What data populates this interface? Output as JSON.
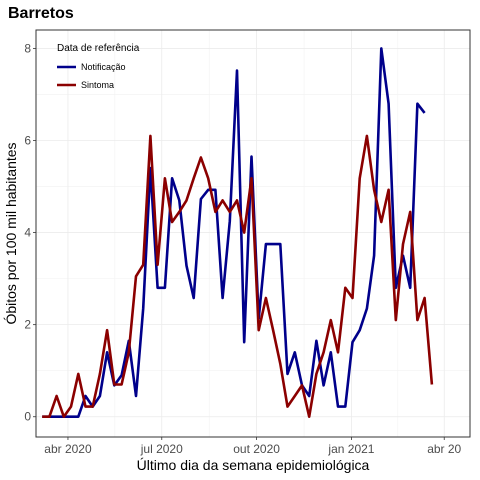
{
  "chart_data": {
    "type": "line",
    "title": "Barretos",
    "xlabel": "Último dia da semana epidemiológica",
    "ylabel": "Óbitos por 100 mil habitantes",
    "ylim": [
      -0.44,
      8.4
    ],
    "xlim": [
      "2020-03-01",
      "2021-04-26"
    ],
    "y_ticks": [
      0,
      2,
      4,
      6,
      8
    ],
    "x_ticks": [
      {
        "date": "2020-04-01",
        "label": "abr 2020"
      },
      {
        "date": "2020-07-01",
        "label": "jul 2020"
      },
      {
        "date": "2020-10-01",
        "label": "out 2020"
      },
      {
        "date": "2021-01-01",
        "label": "jan 2021"
      },
      {
        "date": "2021-04-01",
        "label": "abr 20"
      }
    ],
    "grid": true,
    "legend": {
      "title": "Data de referência",
      "position": "top-left"
    },
    "series": [
      {
        "name": "Notificação",
        "color": "#00008b",
        "points": [
          [
            "2020-03-07",
            0
          ],
          [
            "2020-03-14",
            0
          ],
          [
            "2020-03-21",
            0
          ],
          [
            "2020-03-28",
            0
          ],
          [
            "2020-04-04",
            0
          ],
          [
            "2020-04-11",
            0
          ],
          [
            "2020-04-18",
            0.45
          ],
          [
            "2020-04-25",
            0.22
          ],
          [
            "2020-05-02",
            0.45
          ],
          [
            "2020-05-09",
            1.4
          ],
          [
            "2020-05-16",
            0.68
          ],
          [
            "2020-05-23",
            0.9
          ],
          [
            "2020-05-30",
            1.65
          ],
          [
            "2020-06-06",
            0.45
          ],
          [
            "2020-06-13",
            2.35
          ],
          [
            "2020-06-20",
            5.4
          ],
          [
            "2020-06-27",
            2.8
          ],
          [
            "2020-07-04",
            2.8
          ],
          [
            "2020-07-11",
            5.18
          ],
          [
            "2020-07-18",
            4.7
          ],
          [
            "2020-07-25",
            3.28
          ],
          [
            "2020-08-01",
            2.58
          ],
          [
            "2020-08-08",
            4.73
          ],
          [
            "2020-08-15",
            4.93
          ],
          [
            "2020-08-22",
            4.93
          ],
          [
            "2020-08-29",
            2.58
          ],
          [
            "2020-09-05",
            4.25
          ],
          [
            "2020-09-12",
            7.52
          ],
          [
            "2020-09-19",
            1.62
          ],
          [
            "2020-09-26",
            5.65
          ],
          [
            "2020-10-03",
            2.13
          ],
          [
            "2020-10-10",
            3.75
          ],
          [
            "2020-10-17",
            3.75
          ],
          [
            "2020-10-24",
            3.75
          ],
          [
            "2020-10-31",
            0.93
          ],
          [
            "2020-11-07",
            1.4
          ],
          [
            "2020-11-14",
            0.68
          ],
          [
            "2020-11-21",
            0.45
          ],
          [
            "2020-11-28",
            1.65
          ],
          [
            "2020-12-05",
            0.68
          ],
          [
            "2020-12-12",
            1.4
          ],
          [
            "2020-12-19",
            0.22
          ],
          [
            "2020-12-26",
            0.22
          ],
          [
            "2021-01-02",
            1.62
          ],
          [
            "2021-01-09",
            1.88
          ],
          [
            "2021-01-16",
            2.35
          ],
          [
            "2021-01-23",
            3.5
          ],
          [
            "2021-01-30",
            8.0
          ],
          [
            "2021-02-06",
            6.8
          ],
          [
            "2021-02-13",
            2.8
          ],
          [
            "2021-02-20",
            3.5
          ],
          [
            "2021-02-27",
            2.8
          ],
          [
            "2021-03-06",
            6.8
          ],
          [
            "2021-03-13",
            6.6
          ]
        ]
      },
      {
        "name": "Sintoma",
        "color": "#8b0000",
        "points": [
          [
            "2020-03-07",
            0
          ],
          [
            "2020-03-14",
            0
          ],
          [
            "2020-03-21",
            0.45
          ],
          [
            "2020-03-28",
            0
          ],
          [
            "2020-04-04",
            0.22
          ],
          [
            "2020-04-11",
            0.93
          ],
          [
            "2020-04-18",
            0.22
          ],
          [
            "2020-04-25",
            0.22
          ],
          [
            "2020-05-02",
            0.93
          ],
          [
            "2020-05-09",
            1.88
          ],
          [
            "2020-05-16",
            0.7
          ],
          [
            "2020-05-23",
            0.7
          ],
          [
            "2020-05-30",
            1.4
          ],
          [
            "2020-06-06",
            3.05
          ],
          [
            "2020-06-13",
            3.3
          ],
          [
            "2020-06-20",
            6.1
          ],
          [
            "2020-06-27",
            3.3
          ],
          [
            "2020-07-04",
            5.18
          ],
          [
            "2020-07-11",
            4.23
          ],
          [
            "2020-07-18",
            4.45
          ],
          [
            "2020-07-25",
            4.7
          ],
          [
            "2020-08-01",
            5.18
          ],
          [
            "2020-08-08",
            5.63
          ],
          [
            "2020-08-15",
            5.18
          ],
          [
            "2020-08-22",
            4.45
          ],
          [
            "2020-08-29",
            4.7
          ],
          [
            "2020-09-05",
            4.45
          ],
          [
            "2020-09-12",
            4.7
          ],
          [
            "2020-09-19",
            4.0
          ],
          [
            "2020-09-26",
            5.18
          ],
          [
            "2020-10-03",
            1.88
          ],
          [
            "2020-10-10",
            2.58
          ],
          [
            "2020-10-17",
            1.88
          ],
          [
            "2020-10-24",
            1.15
          ],
          [
            "2020-10-31",
            0.22
          ],
          [
            "2020-11-07",
            0.45
          ],
          [
            "2020-11-14",
            0.68
          ],
          [
            "2020-11-21",
            0
          ],
          [
            "2020-11-28",
            0.93
          ],
          [
            "2020-12-05",
            1.4
          ],
          [
            "2020-12-12",
            2.1
          ],
          [
            "2020-12-19",
            1.4
          ],
          [
            "2020-12-26",
            2.8
          ],
          [
            "2021-01-02",
            2.58
          ],
          [
            "2021-01-09",
            5.18
          ],
          [
            "2021-01-16",
            6.1
          ],
          [
            "2021-01-23",
            4.93
          ],
          [
            "2021-01-30",
            4.23
          ],
          [
            "2021-02-06",
            4.93
          ],
          [
            "2021-02-13",
            2.1
          ],
          [
            "2021-02-20",
            3.75
          ],
          [
            "2021-02-27",
            4.45
          ],
          [
            "2021-03-06",
            2.1
          ],
          [
            "2021-03-13",
            2.58
          ],
          [
            "2021-03-20",
            0.7
          ]
        ]
      }
    ]
  }
}
